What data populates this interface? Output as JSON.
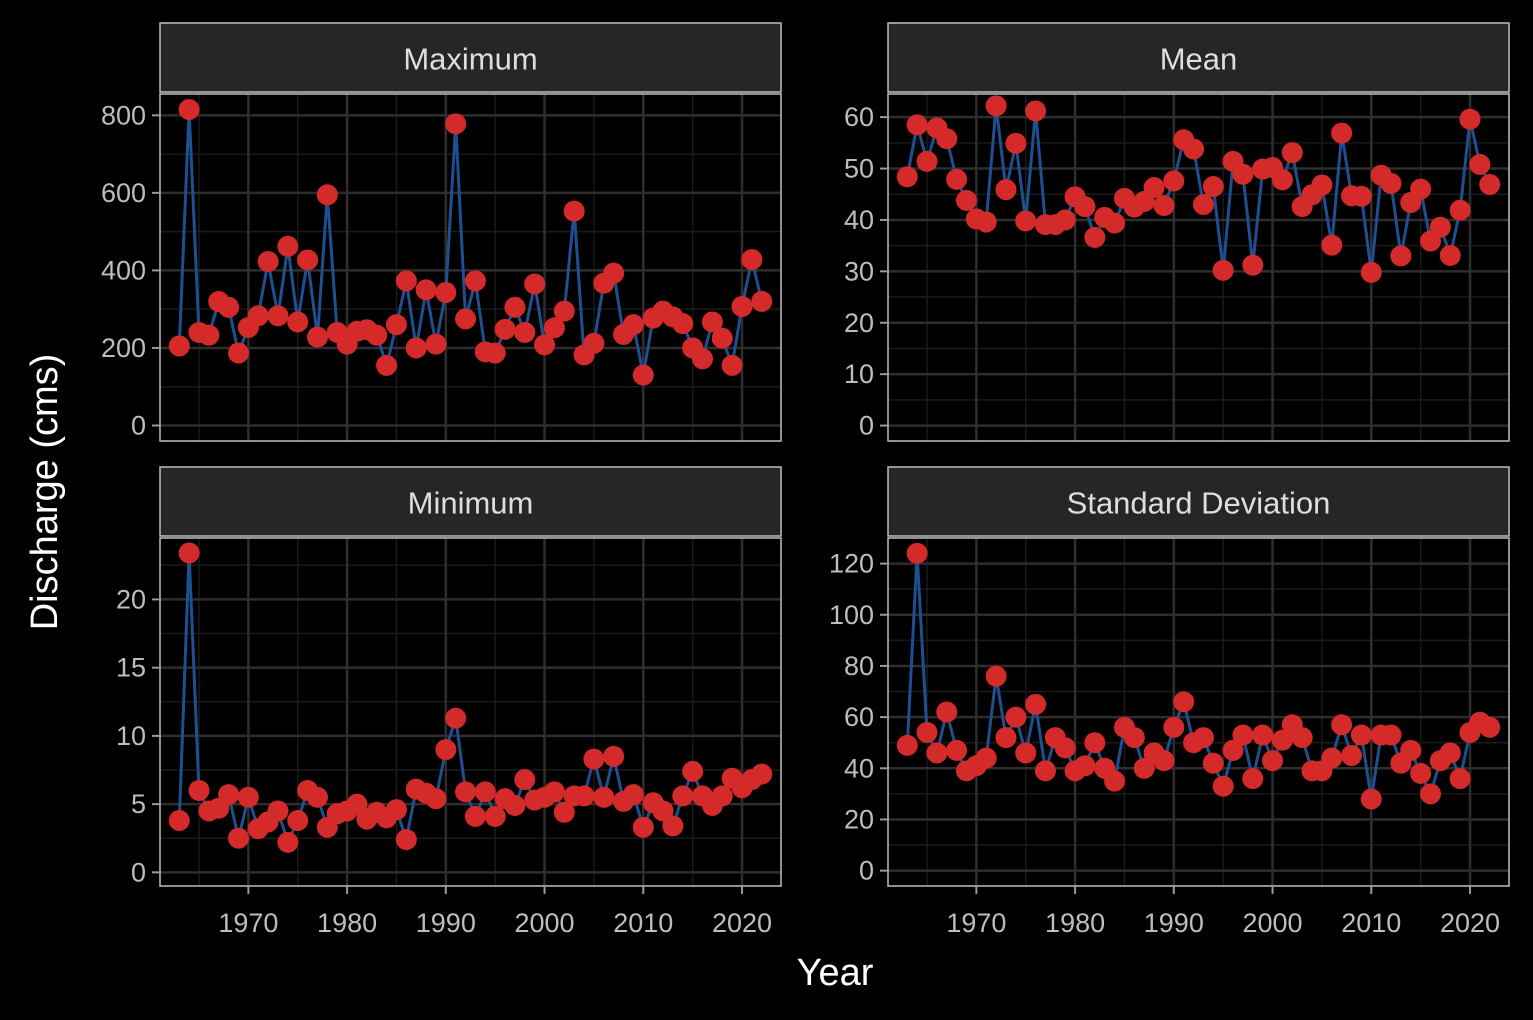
{
  "figure": {
    "xlabel": "Year",
    "ylabel": "Discharge (cms)",
    "colors": {
      "background": "#000000",
      "panel_background": "#000000",
      "panel_border": "#bfbfbf",
      "strip_fill": "#262626",
      "grid_major": "#2e2e2e",
      "grid_minor": "#1a1a1a",
      "line": "#1d4f91",
      "point": "#d42a2a"
    }
  },
  "chart_data": [
    {
      "type": "line",
      "title": "Maximum",
      "x_ticks": [
        1970,
        1980,
        1990,
        2000,
        2010,
        2020
      ],
      "y_ticks": [
        0,
        200,
        400,
        600,
        800
      ],
      "xlim": [
        1961.05,
        2023.95
      ],
      "ylim": [
        -40,
        855
      ],
      "grid": true,
      "x": [
        1963,
        1964,
        1965,
        1966,
        1967,
        1968,
        1969,
        1970,
        1971,
        1972,
        1973,
        1974,
        1975,
        1976,
        1977,
        1978,
        1979,
        1980,
        1981,
        1982,
        1983,
        1984,
        1985,
        1986,
        1987,
        1988,
        1989,
        1990,
        1991,
        1992,
        1993,
        1994,
        1995,
        1996,
        1997,
        1998,
        1999,
        2000,
        2001,
        2002,
        2003,
        2004,
        2005,
        2006,
        2007,
        2008,
        2009,
        2010,
        2011,
        2012,
        2013,
        2014,
        2015,
        2016,
        2017,
        2018,
        2019,
        2020,
        2021,
        2022
      ],
      "values": [
        205,
        815,
        240,
        233,
        320,
        305,
        187,
        253,
        283,
        423,
        283,
        462,
        267,
        427,
        228,
        595,
        240,
        210,
        243,
        247,
        233,
        155,
        260,
        373,
        200,
        350,
        210,
        343,
        778,
        275,
        373,
        190,
        187,
        248,
        305,
        240,
        365,
        208,
        252,
        295,
        553,
        182,
        212,
        367,
        393,
        235,
        260,
        130,
        277,
        295,
        280,
        263,
        200,
        172,
        267,
        225,
        155,
        307,
        428,
        320
      ]
    },
    {
      "type": "line",
      "title": "Mean",
      "x_ticks": [
        1970,
        1980,
        1990,
        2000,
        2010,
        2020
      ],
      "y_ticks": [
        0,
        10,
        20,
        30,
        40,
        50,
        60
      ],
      "xlim": [
        1961.05,
        2023.95
      ],
      "ylim": [
        -3,
        64.5
      ],
      "grid": true,
      "x": [
        1963,
        1964,
        1965,
        1966,
        1967,
        1968,
        1969,
        1970,
        1971,
        1972,
        1973,
        1974,
        1975,
        1976,
        1977,
        1978,
        1979,
        1980,
        1981,
        1982,
        1983,
        1984,
        1985,
        1986,
        1987,
        1988,
        1989,
        1990,
        1991,
        1992,
        1993,
        1994,
        1995,
        1996,
        1997,
        1998,
        1999,
        2000,
        2001,
        2002,
        2003,
        2004,
        2005,
        2006,
        2007,
        2008,
        2009,
        2010,
        2011,
        2012,
        2013,
        2014,
        2015,
        2016,
        2017,
        2018,
        2019,
        2020,
        2021,
        2022
      ],
      "values": [
        48.4,
        58.5,
        51.4,
        57.9,
        55.8,
        47.9,
        43.8,
        40.2,
        39.6,
        62.2,
        45.9,
        54.9,
        39.8,
        61.2,
        39.1,
        39.1,
        40.0,
        44.5,
        42.6,
        36.6,
        40.5,
        39.4,
        44.2,
        42.5,
        43.6,
        46.3,
        42.8,
        47.6,
        55.6,
        53.8,
        43.0,
        46.5,
        30.2,
        51.4,
        48.9,
        31.2,
        49.9,
        50.2,
        47.8,
        53.1,
        42.6,
        44.9,
        46.8,
        35.1,
        56.9,
        44.7,
        44.6,
        29.8,
        48.7,
        47.1,
        33.0,
        43.4,
        46.0,
        35.9,
        38.6,
        33.1,
        41.9,
        59.6,
        50.8,
        46.9
      ]
    },
    {
      "type": "line",
      "title": "Minimum",
      "x_ticks": [
        1970,
        1980,
        1990,
        2000,
        2010,
        2020
      ],
      "y_ticks": [
        0,
        5,
        10,
        15,
        20
      ],
      "xlim": [
        1961.05,
        2023.95
      ],
      "ylim": [
        -1,
        24.5
      ],
      "grid": true,
      "x": [
        1963,
        1964,
        1965,
        1966,
        1967,
        1968,
        1969,
        1970,
        1971,
        1972,
        1973,
        1974,
        1975,
        1976,
        1977,
        1978,
        1979,
        1980,
        1981,
        1982,
        1983,
        1984,
        1985,
        1986,
        1987,
        1988,
        1989,
        1990,
        1991,
        1992,
        1993,
        1994,
        1995,
        1996,
        1997,
        1998,
        1999,
        2000,
        2001,
        2002,
        2003,
        2004,
        2005,
        2006,
        2007,
        2008,
        2009,
        2010,
        2011,
        2012,
        2013,
        2014,
        2015,
        2016,
        2017,
        2018,
        2019,
        2020,
        2021,
        2022
      ],
      "values": [
        3.8,
        23.4,
        6.0,
        4.5,
        4.7,
        5.7,
        2.5,
        5.5,
        3.2,
        3.7,
        4.5,
        2.2,
        3.8,
        6.0,
        5.5,
        3.3,
        4.3,
        4.5,
        5.0,
        3.9,
        4.4,
        4.0,
        4.6,
        2.4,
        6.1,
        5.8,
        5.4,
        9.0,
        11.3,
        5.9,
        4.1,
        5.9,
        4.1,
        5.4,
        4.9,
        6.8,
        5.3,
        5.5,
        5.9,
        4.4,
        5.6,
        5.6,
        8.3,
        5.5,
        8.5,
        5.2,
        5.7,
        3.3,
        5.1,
        4.5,
        3.4,
        5.6,
        7.4,
        5.6,
        4.9,
        5.6,
        6.9,
        6.2,
        6.8,
        7.2
      ]
    },
    {
      "type": "line",
      "title": "Standard Deviation",
      "x_ticks": [
        1970,
        1980,
        1990,
        2000,
        2010,
        2020
      ],
      "y_ticks": [
        0,
        20,
        40,
        60,
        80,
        100,
        120
      ],
      "xlim": [
        1961.05,
        2023.95
      ],
      "ylim": [
        -6,
        130
      ],
      "grid": true,
      "x": [
        1963,
        1964,
        1965,
        1966,
        1967,
        1968,
        1969,
        1970,
        1971,
        1972,
        1973,
        1974,
        1975,
        1976,
        1977,
        1978,
        1979,
        1980,
        1981,
        1982,
        1983,
        1984,
        1985,
        1986,
        1987,
        1988,
        1989,
        1990,
        1991,
        1992,
        1993,
        1994,
        1995,
        1996,
        1997,
        1998,
        1999,
        2000,
        2001,
        2002,
        2003,
        2004,
        2005,
        2006,
        2007,
        2008,
        2009,
        2010,
        2011,
        2012,
        2013,
        2014,
        2015,
        2016,
        2017,
        2018,
        2019,
        2020,
        2021,
        2022
      ],
      "values": [
        49,
        124,
        54,
        46,
        62,
        47,
        39,
        41,
        44,
        76,
        52,
        60,
        46,
        65,
        39,
        52,
        48,
        39,
        41,
        50,
        40,
        35,
        56,
        52,
        40,
        46,
        43,
        56,
        66,
        50,
        52,
        42,
        33,
        47,
        53,
        36,
        53,
        43,
        51,
        57,
        52,
        39,
        39,
        44,
        57,
        45,
        53,
        28,
        53,
        53,
        42,
        47,
        38,
        30,
        43,
        46,
        36,
        54,
        58,
        56
      ]
    }
  ]
}
